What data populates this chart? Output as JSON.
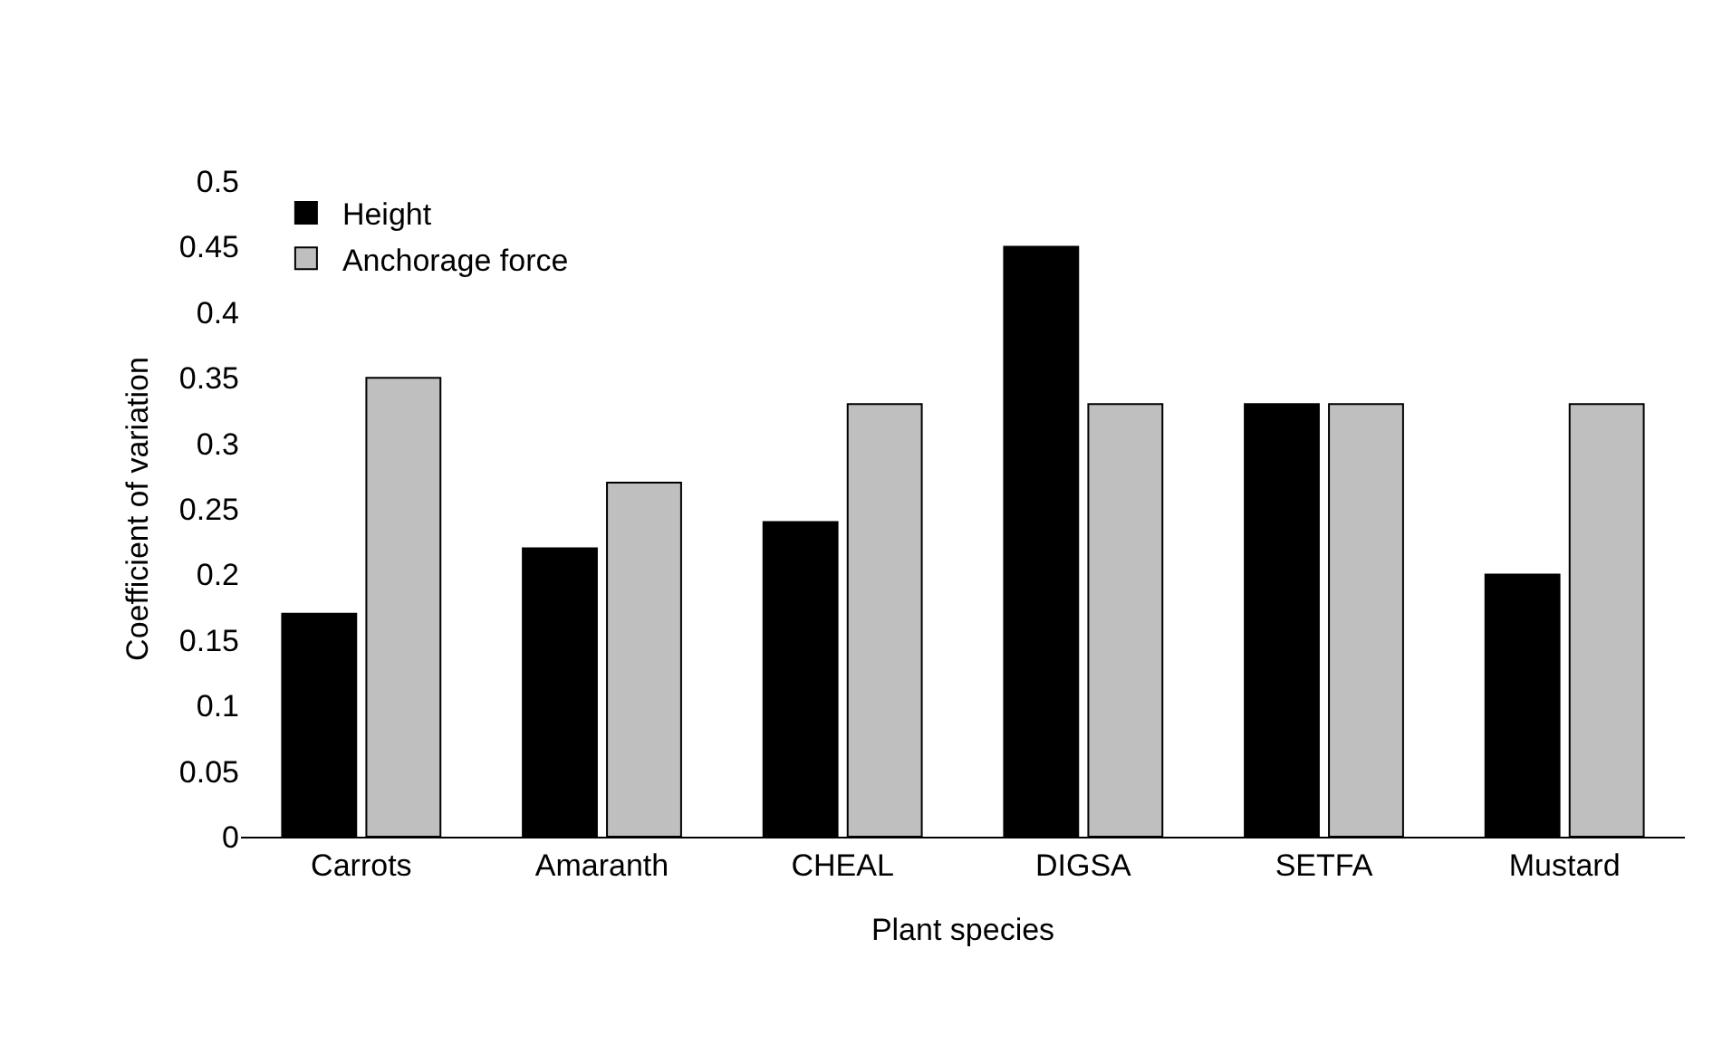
{
  "chart_data": {
    "type": "bar",
    "xlabel": "Plant species",
    "ylabel": "Coefficient of variation",
    "categories": [
      "Carrots",
      "Amaranth",
      "CHEAL",
      "DIGSA",
      "SETFA",
      "Mustard"
    ],
    "series": [
      {
        "name": "Height",
        "color": "#000000",
        "values": [
          0.17,
          0.22,
          0.24,
          0.45,
          0.33,
          0.2
        ]
      },
      {
        "name": "Anchorage force",
        "color": "#bfbfbf",
        "values": [
          0.35,
          0.27,
          0.33,
          0.33,
          0.33,
          0.33
        ]
      }
    ],
    "ylim": [
      0,
      0.5
    ],
    "yticks": [
      0,
      0.05,
      0.1,
      0.15,
      0.2,
      0.25,
      0.3,
      0.35,
      0.4,
      0.45,
      0.5
    ],
    "grid": false,
    "legend": "top left"
  }
}
